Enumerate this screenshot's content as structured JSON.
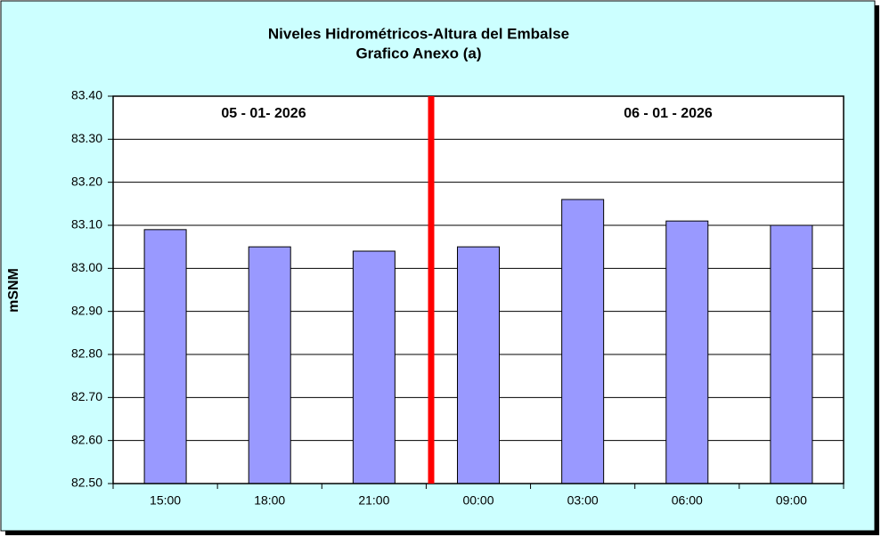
{
  "chart_data": {
    "type": "bar",
    "title": "Niveles Hidrométricos-Altura del Embalse",
    "subtitle": "Grafico Anexo (a)",
    "y_label": "mSNM",
    "annotations": [
      "05 - 01- 2026",
      "06 - 01 - 2026"
    ],
    "categories": [
      "15:00",
      "18:00",
      "21:00",
      "00:00",
      "03:00",
      "06:00",
      "09:00"
    ],
    "values": [
      83.09,
      83.05,
      83.04,
      83.05,
      83.16,
      83.11,
      83.1
    ],
    "color": "#9999ff",
    "ylim": [
      82.5,
      83.4
    ],
    "yticks": [
      {
        "value": 82.5,
        "label": "82.50"
      },
      {
        "value": 82.6,
        "label": "82.60"
      },
      {
        "value": 82.7,
        "label": "82.70"
      },
      {
        "value": 82.8,
        "label": "82.80"
      },
      {
        "value": 82.9,
        "label": "82.90"
      },
      {
        "value": 83.0,
        "label": "83.00"
      },
      {
        "value": 83.1,
        "label": "83.10"
      },
      {
        "value": 83.2,
        "label": "83.20"
      },
      {
        "value": 83.3,
        "label": "83.30"
      },
      {
        "value": 83.4,
        "label": "83.40"
      }
    ],
    "grid": true
  }
}
